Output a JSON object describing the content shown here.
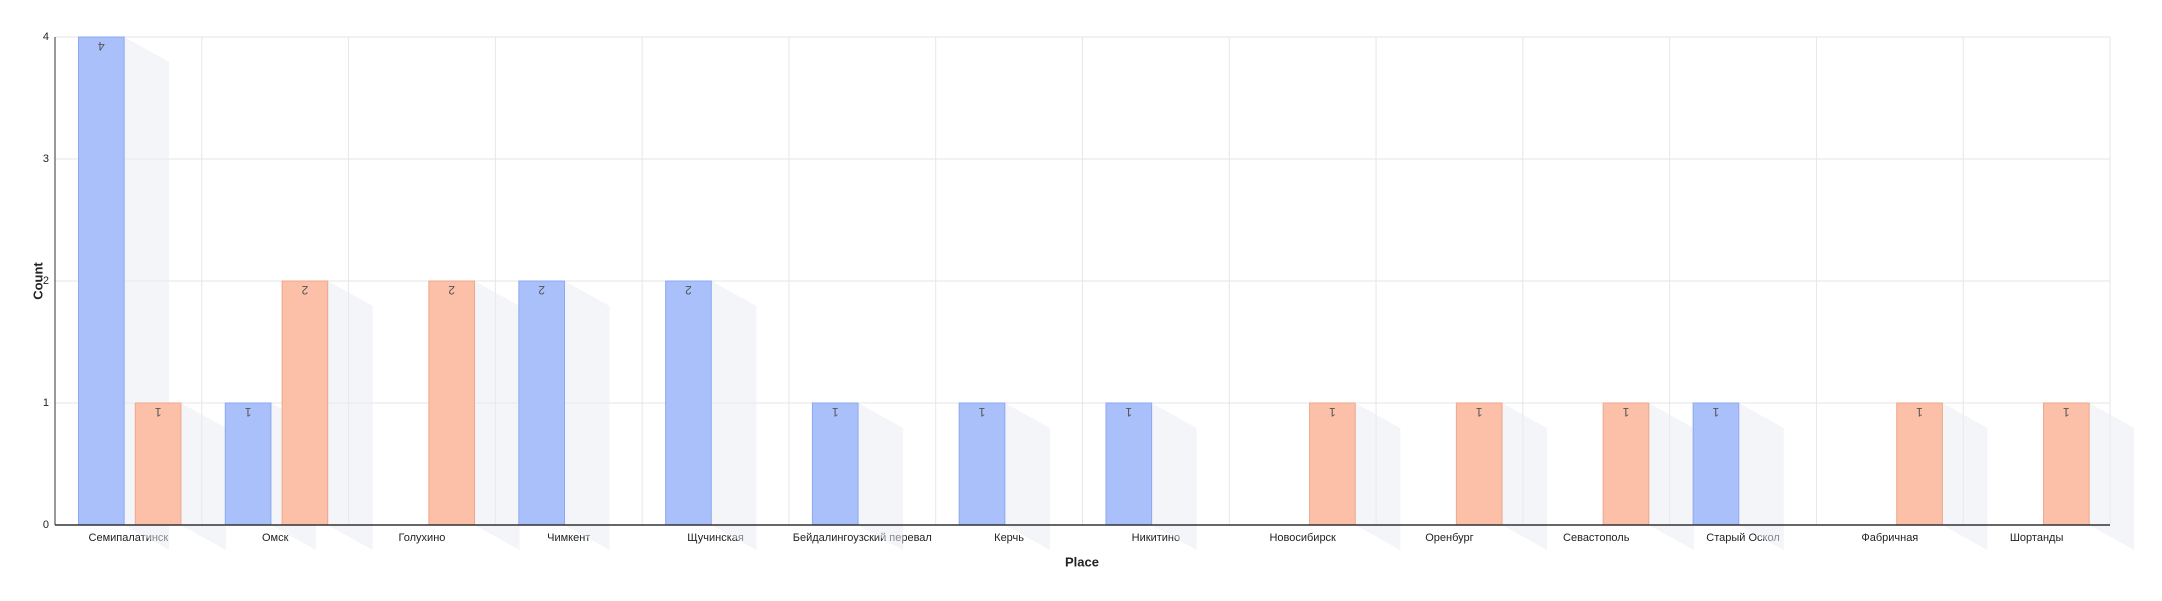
{
  "chart_data": {
    "type": "bar",
    "x_label": "Place",
    "y_label": "Count",
    "categories": [
      "Семипалатинск",
      "Омск",
      "Голухино",
      "Чимкент",
      "Щучинская",
      "Бейдалингоузский перевал",
      "Керчь",
      "Никитино",
      "Новосибирск",
      "Оренбург",
      "Севастополь",
      "Старый Оскол",
      "Фабричная",
      "Шортанды"
    ],
    "series": [
      {
        "color": "#a9c0fb",
        "values": [
          4,
          1,
          null,
          2,
          2,
          1,
          1,
          1,
          null,
          null,
          null,
          1,
          null,
          null
        ]
      },
      {
        "color": "#fcc0a8",
        "values": [
          1,
          2,
          2,
          null,
          null,
          null,
          null,
          null,
          1,
          1,
          1,
          null,
          1,
          1
        ]
      }
    ],
    "ylim": [
      0,
      4
    ],
    "yticks": [
      0,
      1,
      2,
      3,
      4
    ],
    "grid": true
  }
}
